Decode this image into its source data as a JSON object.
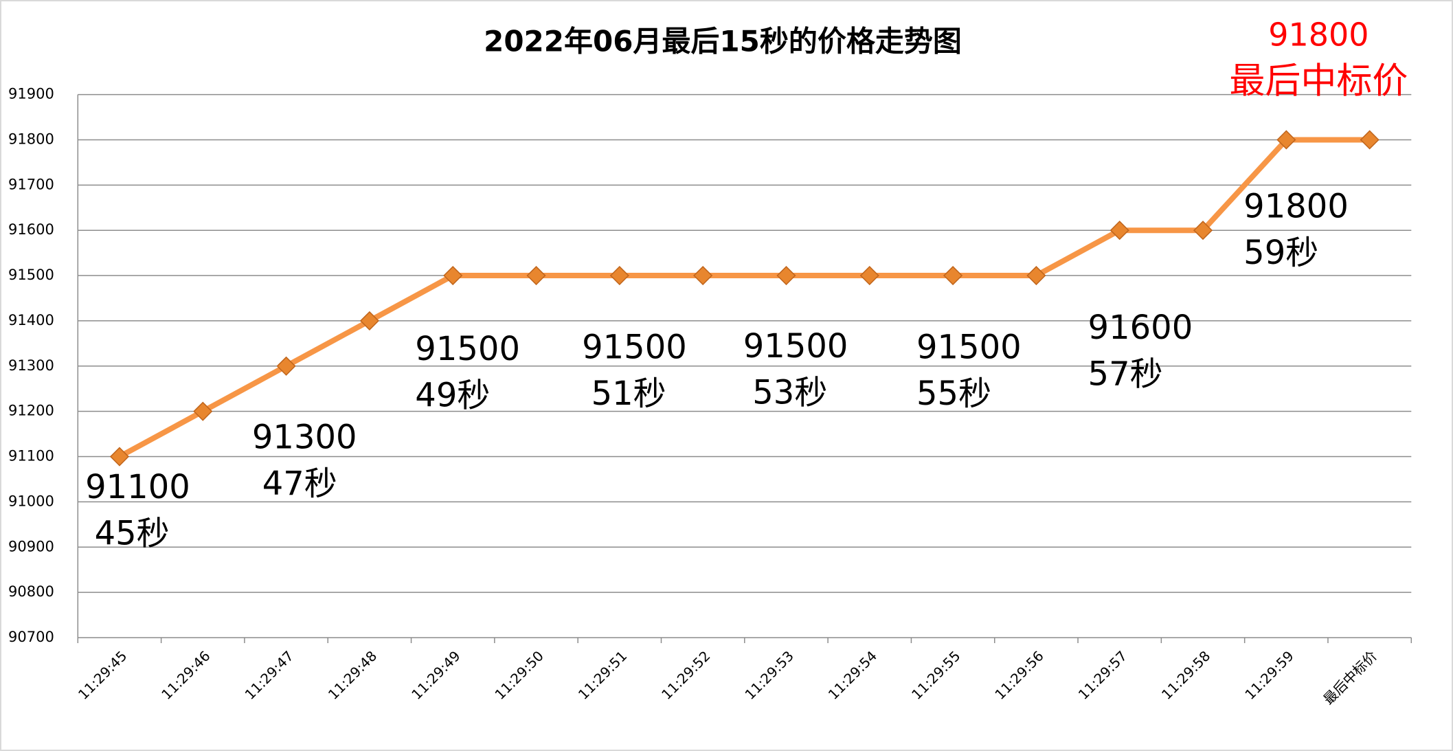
{
  "chart_data": {
    "type": "line",
    "title": "2022年06月最后15秒的价格走势图",
    "categories": [
      "11:29:45",
      "11:29:46",
      "11:29:47",
      "11:29:48",
      "11:29:49",
      "11:29:50",
      "11:29:51",
      "11:29:52",
      "11:29:53",
      "11:29:54",
      "11:29:55",
      "11:29:56",
      "11:29:57",
      "11:29:58",
      "11:29:59",
      "最后中标价"
    ],
    "values": [
      91100,
      91200,
      91300,
      91400,
      91500,
      91500,
      91500,
      91500,
      91500,
      91500,
      91500,
      91500,
      91600,
      91600,
      91800,
      91800
    ],
    "color": "#f79646",
    "marker_color": "#e8862e",
    "ylim": [
      90700,
      91900
    ],
    "yticks": [
      90700,
      90800,
      90900,
      91000,
      91100,
      91200,
      91300,
      91400,
      91500,
      91600,
      91700,
      91800,
      91900
    ],
    "grid": true,
    "annotations": [
      {
        "lines": [
          "91100",
          "45秒"
        ]
      },
      {
        "lines": [
          "91300",
          "47秒"
        ]
      },
      {
        "lines": [
          "91500",
          "49秒"
        ]
      },
      {
        "lines": [
          "91500",
          "51秒"
        ]
      },
      {
        "lines": [
          "91500",
          "53秒"
        ]
      },
      {
        "lines": [
          "91500",
          "55秒"
        ]
      },
      {
        "lines": [
          "91600",
          "57秒"
        ]
      },
      {
        "lines": [
          "91800",
          "59秒"
        ]
      },
      {
        "lines": [
          "91800",
          "最后中标价"
        ],
        "color": "#ff0000"
      }
    ]
  }
}
